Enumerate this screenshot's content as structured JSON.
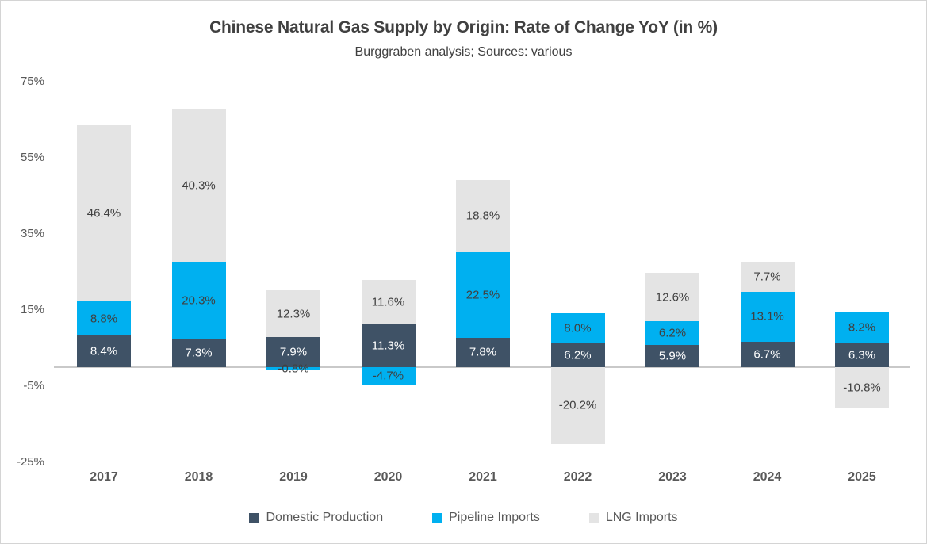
{
  "chart_data": {
    "type": "bar",
    "stacked": true,
    "title": "Chinese Natural Gas Supply by Origin: Rate of Change YoY (in %)",
    "subtitle": "Burggraben analysis; Sources: various",
    "categories": [
      "2017",
      "2018",
      "2019",
      "2020",
      "2021",
      "2022",
      "2023",
      "2024",
      "2025"
    ],
    "series": [
      {
        "name": "Domestic Production",
        "color": "#3F5266",
        "label_color": "#FFFFFF",
        "values": [
          8.4,
          7.3,
          7.9,
          11.3,
          7.8,
          6.2,
          5.9,
          6.7,
          6.3
        ]
      },
      {
        "name": "Pipeline Imports",
        "color": "#00B0F0",
        "label_color": "#404040",
        "values": [
          8.8,
          20.3,
          -0.8,
          -4.7,
          22.5,
          8.0,
          6.2,
          13.1,
          8.2
        ]
      },
      {
        "name": "LNG Imports",
        "color": "#E4E4E4",
        "label_color": "#404040",
        "values": [
          46.4,
          40.3,
          12.3,
          11.6,
          18.8,
          -20.2,
          12.6,
          7.7,
          -10.8
        ]
      }
    ],
    "yticks": [
      75,
      55,
      35,
      15,
      -5,
      -25
    ],
    "ylim": [
      -25,
      75
    ],
    "value_suffix": "%",
    "grid": false,
    "legend_position": "bottom",
    "data_labels": true
  },
  "colors": {
    "axis_line": "#C9C9C9",
    "title_text": "#404040",
    "tick_text": "#595959",
    "background": "#FFFFFF"
  }
}
